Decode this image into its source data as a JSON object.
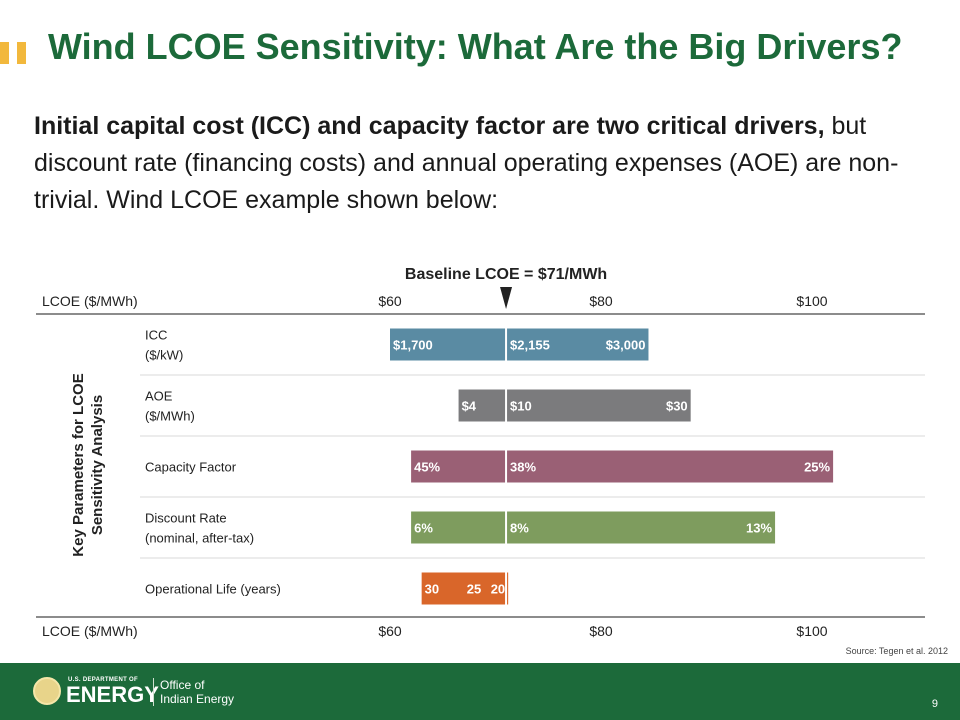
{
  "slide": {
    "title": "Wind LCOE Sensitivity: What Are the Big Drivers?",
    "intro_bold": "Initial capital cost (ICC) and capacity factor are two critical drivers,",
    "intro_rest": " but discount rate (financing costs) and annual operating expenses (AOE) are non-trivial. Wind LCOE example shown below:",
    "source": "Source: Tegen et al. 2012",
    "page_number": "9",
    "footer": {
      "doe_top": "U.S. DEPARTMENT OF",
      "doe_main": "ENERGY",
      "office_line1": "Office of",
      "office_line2": "Indian Energy"
    }
  },
  "chart_data": {
    "type": "bar",
    "title": "Baseline LCOE = $71/MWh",
    "baseline": 71,
    "axis_label": "LCOE ($/MWh)",
    "xlim": [
      60,
      100
    ],
    "ticks": [
      {
        "value": 60,
        "label": "$60"
      },
      {
        "value": 80,
        "label": "$80"
      },
      {
        "value": 100,
        "label": "$100"
      }
    ],
    "ylabel": "Key Parameters for LCOE Sensitivity Analysis",
    "series": [
      {
        "label_line1": "ICC",
        "label_line2": "($/kW)",
        "color": "#5a8ba3",
        "low": 60,
        "high": 84.5,
        "left_label": "$1,700",
        "base_label": "$2,155",
        "right_label": "$3,000"
      },
      {
        "label_line1": "AOE",
        "label_line2": "($/MWh)",
        "color": "#7b7b7d",
        "low": 66.5,
        "high": 88.5,
        "left_label": "$4",
        "base_label": "$10",
        "right_label": "$30"
      },
      {
        "label_line1": "Capacity Factor",
        "label_line2": "",
        "color": "#9a6075",
        "low": 62,
        "high": 102,
        "left_label": "45%",
        "base_label": "38%",
        "right_label": "25%"
      },
      {
        "label_line1": "Discount Rate",
        "label_line2": "(nominal, after-tax)",
        "color": "#7e9c5e",
        "low": 62,
        "high": 96.5,
        "left_label": "6%",
        "base_label": "8%",
        "right_label": "13%"
      },
      {
        "label_line1": "Operational Life (years)",
        "label_line2": "",
        "color": "#d9662a",
        "low": 63,
        "high": 71.2,
        "left_label": "30",
        "base_label": "25",
        "right_label": "20"
      }
    ]
  }
}
